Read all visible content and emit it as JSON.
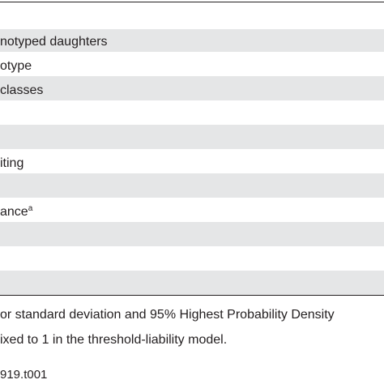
{
  "table": {
    "rows": [
      {
        "label": "notyped daughters",
        "sup": "",
        "shaded": true
      },
      {
        "label": "otype",
        "sup": "",
        "shaded": false
      },
      {
        "label": "classes",
        "sup": "",
        "shaded": true
      },
      {
        "label": "",
        "sup": "",
        "shaded": false
      },
      {
        "label": "",
        "sup": "",
        "shaded": true
      },
      {
        "label": "iting",
        "sup": "",
        "shaded": false
      },
      {
        "label": "",
        "sup": "",
        "shaded": true
      },
      {
        "label": "ance",
        "sup": "a",
        "shaded": false
      },
      {
        "label": "",
        "sup": "",
        "shaded": true
      },
      {
        "label": "",
        "sup": "",
        "shaded": false
      },
      {
        "label": "",
        "sup": "",
        "shaded": true
      },
      {
        "label": "",
        "sup": "",
        "shaded": false
      }
    ]
  },
  "footnotes": {
    "line1": "or standard deviation and 95% Highest Probability Density",
    "line2": "ixed to 1 in the threshold-liability model."
  },
  "doi": "919.t001"
}
